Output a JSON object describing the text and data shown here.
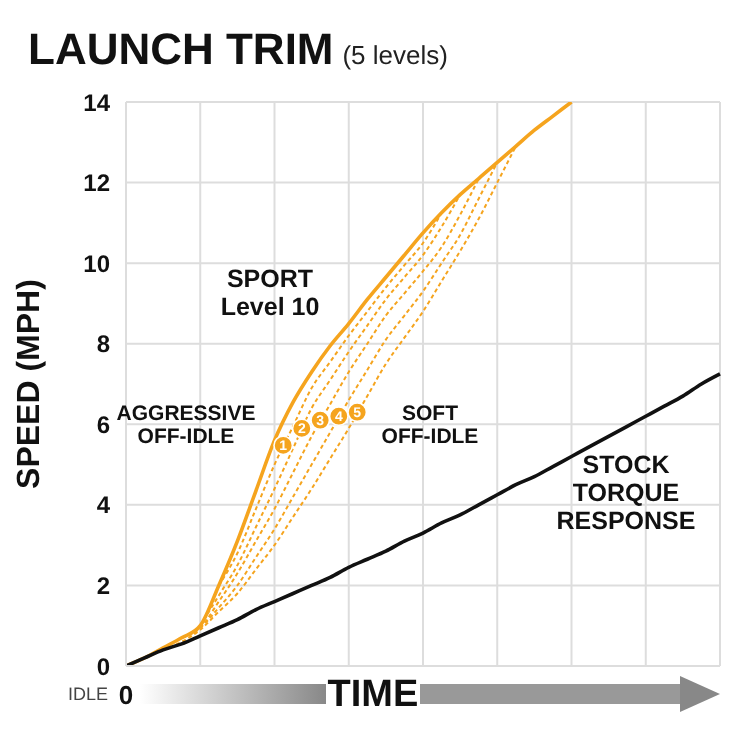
{
  "chart_data": {
    "type": "line",
    "title": "LAUNCH TRIM",
    "subtitle": "(5 levels)",
    "xlabel": "TIME",
    "ylabel": "SPEED (MPH)",
    "categories": [
      "0",
      null,
      null,
      null,
      null,
      null,
      null,
      null,
      null,
      null,
      null,
      null,
      null,
      null,
      null,
      null,
      null,
      null,
      null,
      null,
      null,
      null,
      null,
      null,
      null,
      null,
      null,
      null,
      null,
      null,
      null,
      null,
      null
    ],
    "ylim": [
      0,
      14
    ],
    "yticks": [
      0,
      2,
      4,
      6,
      8,
      10,
      12,
      14
    ],
    "grid": true,
    "legend": false,
    "marker": "none",
    "series": [
      {
        "name": "SPORT\nLevel 10",
        "color": "#f5a41e",
        "line_style": "solid",
        "values": [
          0,
          0.2,
          0.45,
          0.7,
          1.0,
          2.0,
          3.1,
          4.35,
          5.6,
          6.55,
          7.3,
          7.95,
          8.5,
          9.1,
          9.65,
          10.2,
          10.75,
          11.25,
          11.7,
          12.1,
          12.5,
          12.9,
          13.3,
          13.65,
          14,
          null,
          null,
          null,
          null,
          null,
          null,
          null,
          null
        ]
      },
      {
        "color": "#f5a41e",
        "line_style": "dashed",
        "values": [
          null,
          null,
          null,
          null,
          null,
          2.0,
          2.8,
          3.9,
          5.0,
          5.95,
          6.9,
          7.55,
          8.2,
          8.8,
          9.4,
          9.95,
          10.5,
          11.25,
          null,
          null,
          null,
          null,
          null,
          null,
          null,
          null,
          null,
          null,
          null,
          null,
          null,
          null,
          null
        ]
      },
      {
        "color": "#f5a41e",
        "line_style": "dashed",
        "values": [
          null,
          null,
          null,
          null,
          1.0,
          1.75,
          2.5,
          3.45,
          4.4,
          5.4,
          6.4,
          7.1,
          7.8,
          8.45,
          9.1,
          9.65,
          10.2,
          10.9,
          11.7,
          null,
          null,
          null,
          null,
          null,
          null,
          null,
          null,
          null,
          null,
          null,
          null,
          null,
          null
        ]
      },
      {
        "color": "#f5a41e",
        "line_style": "dashed",
        "values": [
          null,
          null,
          null,
          0.7,
          0.95,
          1.6,
          2.3,
          3.1,
          3.9,
          4.8,
          5.7,
          6.5,
          7.3,
          8.0,
          8.7,
          9.25,
          9.8,
          10.4,
          11.2,
          12.1,
          null,
          null,
          null,
          null,
          null,
          null,
          null,
          null,
          null,
          null,
          null,
          null,
          null
        ]
      },
      {
        "color": "#f5a41e",
        "line_style": "dashed",
        "values": [
          null,
          null,
          0.45,
          0.7,
          0.95,
          1.45,
          2.0,
          2.7,
          3.4,
          4.2,
          5.0,
          5.8,
          6.6,
          7.35,
          8.1,
          8.7,
          9.3,
          10.0,
          10.7,
          11.6,
          12.5,
          null,
          null,
          null,
          null,
          null,
          null,
          null,
          null,
          null,
          null,
          null,
          null
        ]
      },
      {
        "color": "#f5a41e",
        "line_style": "dashed",
        "values": [
          null,
          null,
          0.4,
          0.6,
          0.9,
          1.35,
          1.8,
          2.4,
          3.0,
          3.7,
          4.4,
          5.15,
          5.9,
          6.7,
          7.5,
          8.15,
          8.8,
          9.55,
          10.3,
          11.1,
          12.0,
          12.9,
          null,
          null,
          null,
          null,
          null,
          null,
          null,
          null,
          null,
          null,
          null
        ]
      },
      {
        "name": "STOCK\nTORQUE\nRESPONSE",
        "color": "#111111",
        "line_style": "solid",
        "values": [
          0,
          0.2,
          0.4,
          0.55,
          0.75,
          0.95,
          1.15,
          1.4,
          1.6,
          1.8,
          2.0,
          2.2,
          2.45,
          2.65,
          2.85,
          3.1,
          3.3,
          3.55,
          3.75,
          4.0,
          4.25,
          4.5,
          4.7,
          4.95,
          5.2,
          5.45,
          5.7,
          5.95,
          6.2,
          6.45,
          6.7,
          7.0,
          7.25
        ]
      }
    ],
    "annotations": [
      "AGGRESSIVE\nOFF-IDLE",
      "SOFT\nOFF-IDLE",
      "1",
      "2",
      "3",
      "4",
      "5",
      "IDLE"
    ]
  }
}
